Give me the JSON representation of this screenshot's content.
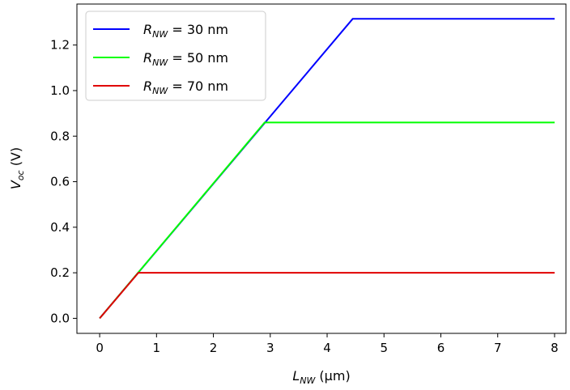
{
  "chart_data": {
    "type": "line",
    "xlabel_main": "L",
    "xlabel_sub": "NW",
    "xlabel_unit": " (μm)",
    "ylabel_main": "V",
    "ylabel_sub": "oc",
    "ylabel_unit": " (V)",
    "xlim": [
      -0.4,
      8.2
    ],
    "ylim": [
      -0.066,
      1.38
    ],
    "xticks": [
      0,
      1,
      2,
      3,
      4,
      5,
      6,
      7,
      8
    ],
    "yticks": [
      0.0,
      0.2,
      0.4,
      0.6,
      0.8,
      1.0,
      1.2
    ],
    "xtick_labels": [
      "0",
      "1",
      "2",
      "3",
      "4",
      "5",
      "6",
      "7",
      "8"
    ],
    "ytick_labels": [
      "0.0",
      "0.2",
      "0.4",
      "0.6",
      "0.8",
      "1.0",
      "1.2"
    ],
    "legend_position": "top-left",
    "series": [
      {
        "label_main": "R",
        "label_sub": "NW",
        "label_value": " = 30 nm",
        "color": "#0000ff",
        "x": [
          0,
          4.45,
          8
        ],
        "y": [
          0,
          1.315,
          1.315
        ]
      },
      {
        "label_main": "R",
        "label_sub": "NW",
        "label_value": " = 50 nm",
        "color": "#00ff00",
        "x": [
          0,
          2.9,
          8
        ],
        "y": [
          0,
          0.86,
          0.86
        ]
      },
      {
        "label_main": "R",
        "label_sub": "NW",
        "label_value": " = 70 nm",
        "color": "#e00000",
        "x": [
          0,
          0.68,
          8
        ],
        "y": [
          0,
          0.2,
          0.2
        ]
      }
    ]
  }
}
